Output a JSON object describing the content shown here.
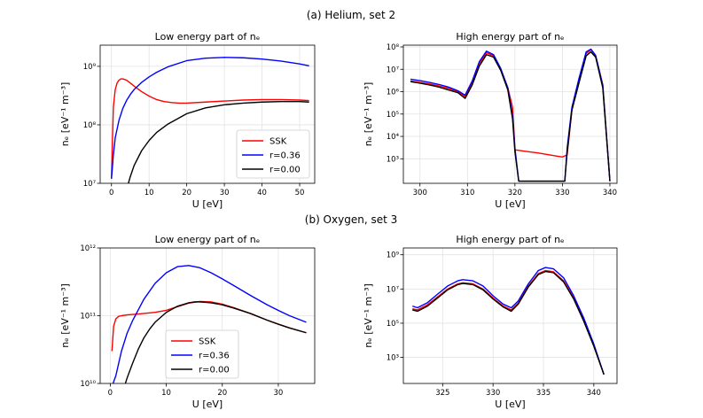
{
  "figure": {
    "suptitles": [
      "(a) Helium, set 2",
      "(b) Oxygen, set 3"
    ]
  },
  "chart_data": [
    {
      "type": "line",
      "title": "Low energy part of n_e",
      "xlabel": "U [eV]",
      "ylabel": "n_e [eV^-1 m^-3]",
      "xlim": [
        -3,
        54
      ],
      "xticks": [
        0,
        10,
        20,
        30,
        40,
        50
      ],
      "yscale": "log",
      "ylim": [
        10000000.0,
        2300000000.0
      ],
      "yticks": [
        10000000.0,
        100000000.0,
        1000000000.0
      ],
      "grid": true,
      "legend": "lower-right",
      "series": [
        {
          "name": "SSK",
          "color": "#ff0000",
          "x": [
            0,
            0.5,
            1,
            1.5,
            2,
            2.5,
            3,
            4,
            5,
            6,
            8,
            10,
            12,
            14,
            16,
            18,
            20,
            25,
            30,
            35,
            40,
            45,
            50,
            52.5
          ],
          "y": [
            12000000.0,
            200000000.0,
            400000000.0,
            520000000.0,
            580000000.0,
            610000000.0,
            610000000.0,
            580000000.0,
            520000000.0,
            460000000.0,
            370000000.0,
            310000000.0,
            270000000.0,
            250000000.0,
            240000000.0,
            235000000.0,
            235000000.0,
            245000000.0,
            255000000.0,
            265000000.0,
            270000000.0,
            270000000.0,
            265000000.0,
            260000000.0
          ]
        },
        {
          "name": "r=0.36",
          "color": "#0000ff",
          "x": [
            0,
            0.5,
            1,
            2,
            3,
            4,
            5,
            6,
            8,
            10,
            12,
            15,
            20,
            25,
            30,
            35,
            40,
            45,
            50,
            52.5
          ],
          "y": [
            12000000.0,
            30000000.0,
            60000000.0,
            120000000.0,
            190000000.0,
            260000000.0,
            330000000.0,
            400000000.0,
            530000000.0,
            660000000.0,
            790000000.0,
            980000000.0,
            1250000000.0,
            1380000000.0,
            1420000000.0,
            1400000000.0,
            1330000000.0,
            1230000000.0,
            1100000000.0,
            1020000000.0
          ]
        },
        {
          "name": "r=0.00",
          "color": "#000000",
          "x": [
            4.5,
            5,
            6,
            8,
            10,
            12,
            15,
            20,
            25,
            30,
            35,
            40,
            45,
            50,
            52.5
          ],
          "y": [
            10000000.0,
            13000000.0,
            20000000.0,
            36000000.0,
            54000000.0,
            74000000.0,
            103000000.0,
            155000000.0,
            195000000.0,
            220000000.0,
            235000000.0,
            245000000.0,
            250000000.0,
            250000000.0,
            245000000.0
          ]
        }
      ]
    },
    {
      "type": "line",
      "title": "High energy part of n_e",
      "xlabel": "U [eV]",
      "ylabel": "n_e [eV^-1 m^-3]",
      "xlim": [
        296.5,
        341.5
      ],
      "xticks": [
        300,
        310,
        320,
        330,
        340
      ],
      "yscale": "log",
      "ylim": [
        80,
        120000000.0
      ],
      "yticks": [
        1000.0,
        10000.0,
        100000.0,
        1000000.0,
        10000000.0,
        100000000.0
      ],
      "grid": true,
      "series": [
        {
          "name": "SSK",
          "color": "#ff0000",
          "x": [
            298,
            300,
            302,
            304,
            306,
            308,
            309.5,
            311,
            312.5,
            314,
            315.5,
            317,
            318.5,
            319.5,
            320,
            322,
            325,
            328,
            330,
            331,
            332,
            333.5,
            335,
            336,
            337,
            338.5,
            340
          ],
          "y": [
            3000000.0,
            2600000.0,
            2200000.0,
            1800000.0,
            1400000.0,
            1000000.0,
            600000.0,
            2500000.0,
            18000000.0,
            55000000.0,
            40000000.0,
            10000000.0,
            1500000.0,
            200000.0,
            2500.0,
            2200.0,
            1800.0,
            1400.0,
            1200.0,
            1500.0,
            150000.0,
            3000000.0,
            50000000.0,
            75000000.0,
            40000000.0,
            2000000.0,
            100
          ]
        },
        {
          "name": "r=0.36",
          "color": "#0000ff",
          "x": [
            298,
            300,
            302,
            304,
            306,
            308,
            309.5,
            311,
            312.5,
            314,
            315.5,
            317,
            318.5,
            319.5,
            320,
            320.8,
            330.5,
            331,
            332,
            333.5,
            335,
            336,
            337,
            338.5,
            340
          ],
          "y": [
            3600000.0,
            3100000.0,
            2600000.0,
            2100000.0,
            1600000.0,
            1100000.0,
            700000.0,
            3000000.0,
            22000000.0,
            65000000.0,
            45000000.0,
            11000000.0,
            1500000.0,
            80000.0,
            3000.0,
            100,
            100,
            3000.0,
            200000.0,
            4000000.0,
            60000000.0,
            80000000.0,
            42000000.0,
            2000000.0,
            100
          ]
        },
        {
          "name": "r=0.00",
          "color": "#000000",
          "x": [
            298,
            300,
            302,
            304,
            306,
            308,
            309.5,
            311,
            312.5,
            314,
            315.5,
            317,
            318.5,
            319.5,
            320,
            320.8,
            330.5,
            331,
            332,
            333.5,
            335,
            336,
            337,
            338.5,
            340
          ],
          "y": [
            2800000.0,
            2400000.0,
            2000000.0,
            1600000.0,
            1200000.0,
            900000.0,
            500000.0,
            2000000.0,
            14000000.0,
            45000000.0,
            35000000.0,
            9000000.0,
            1200000.0,
            60000.0,
            2000.0,
            100,
            100,
            2000.0,
            150000.0,
            2500000.0,
            40000000.0,
            60000000.0,
            35000000.0,
            1500000.0,
            100
          ]
        }
      ]
    },
    {
      "type": "line",
      "title": "Low energy part of n_e",
      "xlabel": "U [eV]",
      "ylabel": "n_e [eV^-1 m^-3]",
      "xlim": [
        -1.8,
        36.5
      ],
      "xticks": [
        0,
        10,
        20,
        30
      ],
      "yscale": "log",
      "ylim": [
        10000000000.0,
        1000000000000.0
      ],
      "yticks": [
        10000000000.0,
        100000000000.0,
        1000000000000.0
      ],
      "grid": true,
      "legend": "lower-left",
      "series": [
        {
          "name": "SSK",
          "color": "#ff0000",
          "x": [
            0.3,
            0.6,
            1,
            1.5,
            2,
            3,
            5,
            8,
            10,
            12,
            14,
            16,
            18,
            20,
            22,
            25,
            28,
            30,
            32,
            35
          ],
          "y": [
            30000000000.0,
            70000000000.0,
            90000000000.0,
            98000000000.0,
            100000000000.0,
            103000000000.0,
            106000000000.0,
            112000000000.0,
            120000000000.0,
            136000000000.0,
            153000000000.0,
            162000000000.0,
            160000000000.0,
            148000000000.0,
            132000000000.0,
            108000000000.0,
            86000000000.0,
            75000000000.0,
            66000000000.0,
            56000000000.0
          ]
        },
        {
          "name": "r=0.36",
          "color": "#0000ff",
          "x": [
            0.5,
            1,
            2,
            3,
            4,
            6,
            8,
            10,
            12,
            14,
            16,
            18,
            20,
            22,
            25,
            28,
            30,
            32,
            35
          ],
          "y": [
            10000000000.0,
            13000000000.0,
            30000000000.0,
            55000000000.0,
            85000000000.0,
            175000000000.0,
            300000000000.0,
            430000000000.0,
            530000000000.0,
            550000000000.0,
            510000000000.0,
            430000000000.0,
            350000000000.0,
            280000000000.0,
            200000000000.0,
            145000000000.0,
            120000000000.0,
            100000000000.0,
            80000000000.0
          ]
        },
        {
          "name": "r=0.00",
          "color": "#000000",
          "x": [
            2.7,
            3,
            4,
            5,
            6,
            7,
            8,
            10,
            12,
            14,
            15,
            16,
            18,
            20,
            22,
            25,
            28,
            30,
            32,
            35
          ],
          "y": [
            10000000000.0,
            12000000000.0,
            20000000000.0,
            32000000000.0,
            47000000000.0,
            63000000000.0,
            80000000000.0,
            112000000000.0,
            138000000000.0,
            155000000000.0,
            160000000000.0,
            160000000000.0,
            155000000000.0,
            145000000000.0,
            130000000000.0,
            108000000000.0,
            86000000000.0,
            75000000000.0,
            66000000000.0,
            56000000000.0
          ]
        }
      ]
    },
    {
      "type": "line",
      "title": "High energy part of n_e",
      "xlabel": "U [eV]",
      "ylabel": "n_e [eV^-1 m^-3]",
      "xlim": [
        321.1,
        342.3
      ],
      "xticks": [
        325,
        330,
        335,
        340
      ],
      "yscale": "log",
      "ylim": [
        30,
        2500000000.0
      ],
      "yticks": [
        1000.0,
        100000.0,
        10000000.0,
        1000000000.0
      ],
      "grid": true,
      "series": [
        {
          "name": "SSK",
          "color": "#ff0000",
          "x": [
            322,
            322.5,
            323.5,
            324.5,
            325.5,
            326.5,
            327,
            328,
            329,
            330,
            331,
            331.8,
            332.5,
            333.5,
            334.5,
            335.2,
            336,
            337,
            338,
            339,
            340,
            341
          ],
          "y": [
            700000.0,
            600000.0,
            1200000.0,
            3500000.0,
            10000000.0,
            20000000.0,
            23000000.0,
            20000000.0,
            10000000.0,
            3000000.0,
            1000000.0,
            600000.0,
            1500000.0,
            15000000.0,
            80000000.0,
            120000000.0,
            100000000.0,
            30000000.0,
            3000000.0,
            150000.0,
            5000.0,
            100
          ]
        },
        {
          "name": "r=0.36",
          "color": "#0000ff",
          "x": [
            322,
            322.5,
            323.5,
            324.5,
            325.5,
            326.5,
            327,
            328,
            329,
            330,
            331,
            331.8,
            332.5,
            333.5,
            334.5,
            335.2,
            336,
            337,
            338,
            339,
            340,
            341
          ],
          "y": [
            1000000.0,
            800000.0,
            1600000.0,
            5000000.0,
            15000000.0,
            30000000.0,
            35000000.0,
            30000000.0,
            15000000.0,
            4000000.0,
            1300000.0,
            800000.0,
            2000000.0,
            20000000.0,
            120000000.0,
            180000000.0,
            150000000.0,
            45000000.0,
            4000000.0,
            200000.0,
            6000.0,
            100
          ]
        },
        {
          "name": "r=0.00",
          "color": "#000000",
          "x": [
            322,
            322.5,
            323.5,
            324.5,
            325.5,
            326.5,
            327,
            328,
            329,
            330,
            331,
            331.8,
            332.5,
            333.5,
            334.5,
            335.2,
            336,
            337,
            338,
            339,
            340,
            341
          ],
          "y": [
            600000.0,
            500000.0,
            1000000.0,
            3000000.0,
            9000000.0,
            18000000.0,
            21000000.0,
            18000000.0,
            9000000.0,
            2600000.0,
            900000.0,
            500000.0,
            1300000.0,
            13000000.0,
            70000000.0,
            105000000.0,
            90000000.0,
            26000000.0,
            2600000.0,
            130000.0,
            4500.0,
            100
          ]
        }
      ]
    }
  ]
}
